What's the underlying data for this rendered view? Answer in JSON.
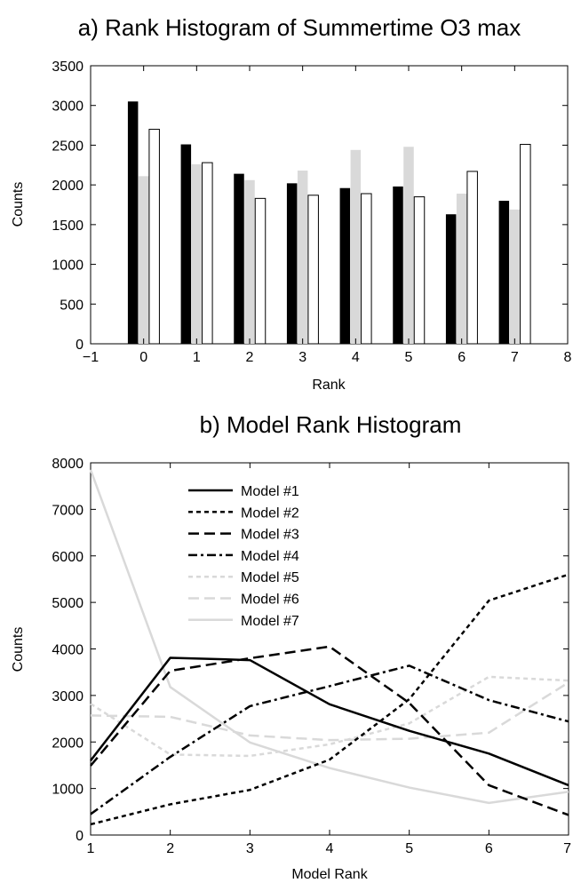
{
  "chart_data": [
    {
      "type": "bar",
      "title": "a) Rank Histogram of Summertime O3 max",
      "xlabel": "Rank",
      "ylabel": "Counts",
      "xlim": [
        -1,
        8
      ],
      "ylim": [
        0,
        3500
      ],
      "xticks": [
        "−1",
        "0",
        "1",
        "2",
        "3",
        "4",
        "5",
        "6",
        "7",
        "8"
      ],
      "yticks": [
        "0",
        "500",
        "1000",
        "1500",
        "2000",
        "2500",
        "3000",
        "3500"
      ],
      "categories": [
        0,
        1,
        2,
        3,
        4,
        5,
        6,
        7
      ],
      "grid": false,
      "series": [
        {
          "color": "#000000",
          "values": [
            3050,
            2510,
            2140,
            2020,
            1960,
            1980,
            1630,
            1800
          ]
        },
        {
          "color": "#d9d9d9",
          "values": [
            2110,
            2260,
            2060,
            2180,
            2440,
            2480,
            1890,
            1690
          ]
        },
        {
          "color": "#ffffff",
          "values": [
            2700,
            2280,
            1830,
            1870,
            1890,
            1850,
            2170,
            2510
          ]
        }
      ]
    },
    {
      "type": "line",
      "title": "b) Model Rank Histogram",
      "xlabel": "Model Rank",
      "ylabel": "Counts",
      "xlim": [
        1,
        7
      ],
      "ylim": [
        0,
        8000
      ],
      "xticks": [
        "1",
        "2",
        "3",
        "4",
        "5",
        "6",
        "7"
      ],
      "yticks": [
        "0",
        "1000",
        "2000",
        "3000",
        "4000",
        "5000",
        "6000",
        "7000",
        "8000"
      ],
      "x": [
        1,
        2,
        3,
        4,
        5,
        6,
        7
      ],
      "grid": false,
      "legend_position": "top-left",
      "series": [
        {
          "name": "Model #1",
          "color": "#000000",
          "dash": "solid",
          "values": [
            1600,
            3810,
            3760,
            2810,
            2240,
            1750,
            1070
          ]
        },
        {
          "name": "Model #2",
          "color": "#000000",
          "dash": "dotted",
          "values": [
            230,
            660,
            970,
            1620,
            2920,
            5040,
            5600
          ]
        },
        {
          "name": "Model #3",
          "color": "#000000",
          "dash": "dashed",
          "values": [
            1490,
            3530,
            3800,
            4050,
            2840,
            1070,
            430
          ]
        },
        {
          "name": "Model #4",
          "color": "#000000",
          "dash": "dashdot",
          "values": [
            450,
            1680,
            2770,
            3200,
            3640,
            2900,
            2440
          ]
        },
        {
          "name": "Model #5",
          "color": "#d9d9d9",
          "dash": "dotted",
          "values": [
            2820,
            1730,
            1700,
            1950,
            2400,
            3400,
            3320
          ]
        },
        {
          "name": "Model #6",
          "color": "#d9d9d9",
          "dash": "dashed",
          "values": [
            2570,
            2540,
            2140,
            2040,
            2070,
            2200,
            3280
          ]
        },
        {
          "name": "Model #7",
          "color": "#d9d9d9",
          "dash": "solid",
          "values": [
            7850,
            3180,
            1990,
            1440,
            1020,
            690,
            930
          ]
        }
      ]
    }
  ]
}
